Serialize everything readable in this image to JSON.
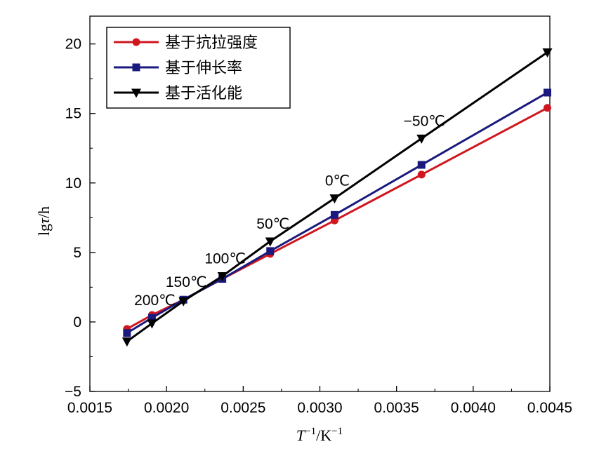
{
  "chart_data": {
    "type": "line",
    "xlabel": {
      "base": "T",
      "sup1": "−1",
      "unit": "/K",
      "sup2": "−1"
    },
    "ylabel": {
      "prefix": "lg",
      "symbol": "τ",
      "suffix": "/h"
    },
    "xlim": [
      0.0015,
      0.0045
    ],
    "ylim": [
      -5,
      22
    ],
    "x_ticks": [
      0.0015,
      0.002,
      0.0025,
      0.003,
      0.0035,
      0.004,
      0.0045
    ],
    "x_tick_labels": [
      "0.0015",
      "0.0020",
      "0.0025",
      "0.0030",
      "0.0035",
      "0.0040",
      "0.0045"
    ],
    "y_ticks": [
      -5,
      0,
      5,
      10,
      15,
      20
    ],
    "y_tick_labels": [
      "−5",
      "0",
      "5",
      "10",
      "15",
      "20"
    ],
    "legend_position": "top-left",
    "x": [
      0.001742,
      0.001905,
      0.00211,
      0.002364,
      0.002676,
      0.003096,
      0.003663,
      0.004484
    ],
    "series": [
      {
        "name": "基于抗拉强度",
        "marker": "circle",
        "color": "#d0161e",
        "values": [
          -0.5,
          0.5,
          1.6,
          3.1,
          4.9,
          7.3,
          10.6,
          15.4
        ]
      },
      {
        "name": "基于伸长率",
        "marker": "square",
        "color": "#1a1a7e",
        "values": [
          -0.8,
          0.3,
          1.6,
          3.1,
          5.1,
          7.7,
          11.3,
          16.5
        ]
      },
      {
        "name": "基于活化能",
        "marker": "triangle-down",
        "color": "#000000",
        "values": [
          -1.4,
          -0.1,
          1.5,
          3.3,
          5.8,
          8.9,
          13.2,
          19.4
        ]
      }
    ],
    "annotations": [
      {
        "text": "200℃",
        "x": 0.001905,
        "y": 0.3
      },
      {
        "text": "150℃",
        "x": 0.00211,
        "y": 1.6
      },
      {
        "text": "100℃",
        "x": 0.002364,
        "y": 3.3
      },
      {
        "text": "50℃",
        "x": 0.002676,
        "y": 5.8
      },
      {
        "text": "0℃",
        "x": 0.003096,
        "y": 8.9
      },
      {
        "text": "−50℃",
        "x": 0.003663,
        "y": 13.2
      }
    ]
  }
}
